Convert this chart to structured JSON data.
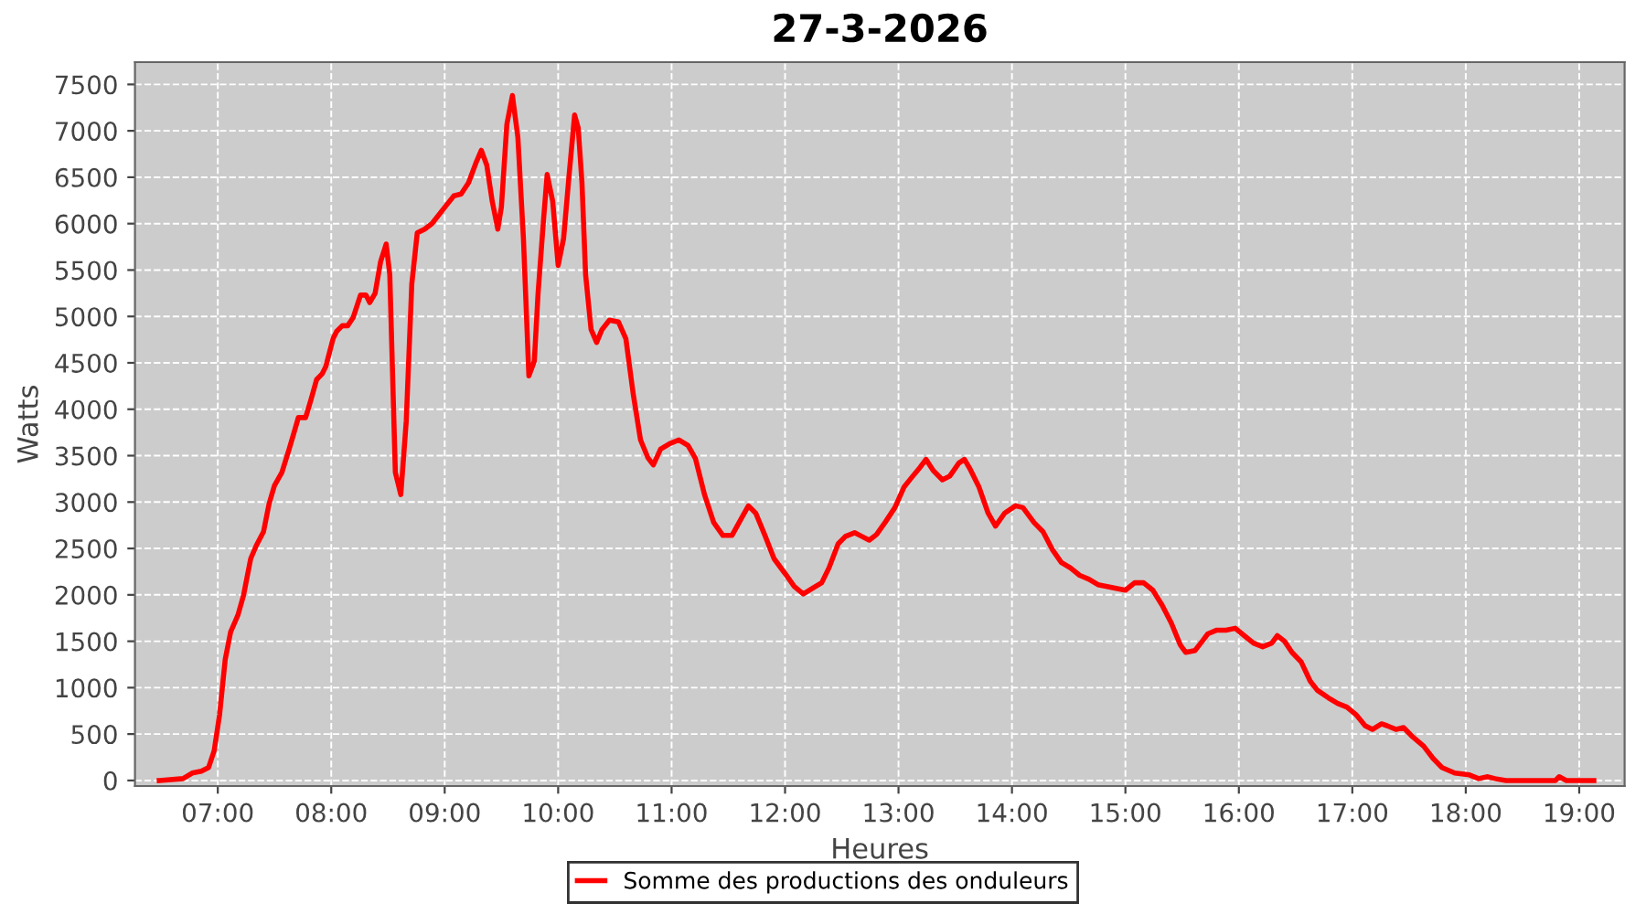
{
  "chart_data": {
    "type": "line",
    "title": "27-3-2026",
    "xlabel": "Heures",
    "ylabel": "Watts",
    "grid": true,
    "legend": "bottom",
    "line_style": "solid",
    "xlim": [
      6.27,
      19.4
    ],
    "xticks": [
      {
        "value": 7,
        "label": "07:00"
      },
      {
        "value": 8,
        "label": "08:00"
      },
      {
        "value": 9,
        "label": "09:00"
      },
      {
        "value": 10,
        "label": "10:00"
      },
      {
        "value": 11,
        "label": "11:00"
      },
      {
        "value": 12,
        "label": "12:00"
      },
      {
        "value": 13,
        "label": "13:00"
      },
      {
        "value": 14,
        "label": "14:00"
      },
      {
        "value": 15,
        "label": "15:00"
      },
      {
        "value": 16,
        "label": "16:00"
      },
      {
        "value": 17,
        "label": "17:00"
      },
      {
        "value": 18,
        "label": "18:00"
      },
      {
        "value": 19,
        "label": "19:00"
      }
    ],
    "ylim": [
      -60,
      7740
    ],
    "yticks": [
      0,
      500,
      1000,
      1500,
      2000,
      2500,
      3000,
      3500,
      4000,
      4500,
      5000,
      5500,
      6000,
      6500,
      7000,
      7500
    ],
    "series": [
      {
        "name": "Somme des productions des onduleurs",
        "color": "#ff0000",
        "x": [
          6.484,
          6.694,
          6.774,
          6.855,
          6.919,
          6.968,
          7.016,
          7.065,
          7.113,
          7.177,
          7.226,
          7.29,
          7.339,
          7.403,
          7.452,
          7.5,
          7.565,
          7.629,
          7.677,
          7.71,
          7.774,
          7.823,
          7.871,
          7.919,
          7.952,
          8.016,
          8.048,
          8.097,
          8.145,
          8.194,
          8.258,
          8.306,
          8.339,
          8.387,
          8.435,
          8.484,
          8.516,
          8.565,
          8.613,
          8.661,
          8.71,
          8.758,
          8.823,
          8.887,
          8.952,
          9.016,
          9.081,
          9.145,
          9.21,
          9.274,
          9.323,
          9.371,
          9.419,
          9.468,
          9.5,
          9.548,
          9.597,
          9.645,
          9.694,
          9.742,
          9.79,
          9.823,
          9.871,
          9.903,
          9.952,
          10.0,
          10.048,
          10.097,
          10.145,
          10.177,
          10.21,
          10.242,
          10.29,
          10.339,
          10.387,
          10.452,
          10.532,
          10.597,
          10.661,
          10.726,
          10.79,
          10.839,
          10.903,
          10.984,
          11.065,
          11.145,
          11.21,
          11.29,
          11.371,
          11.452,
          11.532,
          11.613,
          11.677,
          11.742,
          11.823,
          11.903,
          12.0,
          12.081,
          12.161,
          12.242,
          12.323,
          12.387,
          12.468,
          12.532,
          12.613,
          12.677,
          12.742,
          12.806,
          12.887,
          12.968,
          13.048,
          13.113,
          13.194,
          13.242,
          13.306,
          13.387,
          13.452,
          13.532,
          13.581,
          13.629,
          13.71,
          13.79,
          13.855,
          13.935,
          14.032,
          14.097,
          14.194,
          14.274,
          14.355,
          14.435,
          14.516,
          14.597,
          14.677,
          14.758,
          14.839,
          14.919,
          15.0,
          15.081,
          15.161,
          15.242,
          15.323,
          15.403,
          15.484,
          15.532,
          15.613,
          15.677,
          15.726,
          15.806,
          15.887,
          15.968,
          16.048,
          16.129,
          16.21,
          16.29,
          16.339,
          16.403,
          16.468,
          16.548,
          16.629,
          16.694,
          16.79,
          16.871,
          16.952,
          17.032,
          17.113,
          17.177,
          17.258,
          17.306,
          17.387,
          17.452,
          17.532,
          17.629,
          17.71,
          17.79,
          17.903,
          18.032,
          18.113,
          18.194,
          18.258,
          18.355,
          18.79,
          18.823,
          18.887,
          19.129
        ],
        "values": [
          0,
          20,
          80,
          100,
          140,
          320,
          710,
          1300,
          1600,
          1780,
          1990,
          2390,
          2530,
          2680,
          2980,
          3180,
          3320,
          3570,
          3770,
          3910,
          3910,
          4110,
          4320,
          4380,
          4460,
          4760,
          4840,
          4900,
          4900,
          4990,
          5230,
          5230,
          5150,
          5250,
          5590,
          5780,
          5450,
          3320,
          3080,
          3870,
          5350,
          5900,
          5940,
          6000,
          6100,
          6200,
          6300,
          6320,
          6440,
          6650,
          6790,
          6630,
          6240,
          5940,
          6180,
          7070,
          7380,
          6930,
          5840,
          4360,
          4520,
          5250,
          6040,
          6530,
          6240,
          5550,
          5840,
          6530,
          7170,
          7030,
          6440,
          5450,
          4860,
          4720,
          4860,
          4960,
          4940,
          4760,
          4170,
          3670,
          3480,
          3400,
          3570,
          3630,
          3670,
          3610,
          3470,
          3080,
          2780,
          2640,
          2640,
          2820,
          2960,
          2880,
          2640,
          2390,
          2230,
          2090,
          2010,
          2070,
          2130,
          2290,
          2550,
          2630,
          2670,
          2630,
          2590,
          2650,
          2790,
          2940,
          3160,
          3260,
          3380,
          3460,
          3340,
          3240,
          3280,
          3420,
          3460,
          3360,
          3160,
          2880,
          2740,
          2880,
          2960,
          2940,
          2780,
          2680,
          2490,
          2350,
          2290,
          2210,
          2170,
          2110,
          2090,
          2070,
          2050,
          2130,
          2130,
          2050,
          1890,
          1700,
          1460,
          1380,
          1400,
          1500,
          1580,
          1620,
          1620,
          1640,
          1560,
          1480,
          1440,
          1480,
          1560,
          1500,
          1380,
          1280,
          1070,
          970,
          890,
          830,
          790,
          710,
          590,
          550,
          610,
          590,
          550,
          570,
          470,
          370,
          240,
          140,
          80,
          60,
          20,
          40,
          20,
          0,
          0,
          40,
          0,
          0
        ]
      }
    ]
  }
}
